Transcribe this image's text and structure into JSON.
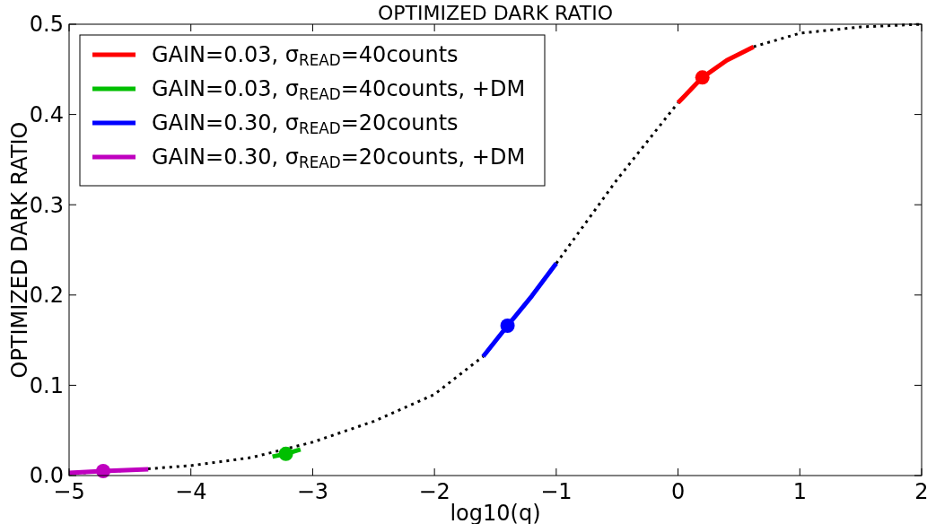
{
  "chart_data": {
    "type": "line",
    "title": "OPTIMIZED DARK RATIO",
    "xlabel": "log10(q)",
    "ylabel": "OPTIMIZED DARK RATIO",
    "xlim": [
      -5,
      2
    ],
    "xticks": [
      {
        "value": -5,
        "label": "−5"
      },
      {
        "value": -4,
        "label": "−4"
      },
      {
        "value": -3,
        "label": "−3"
      },
      {
        "value": -2,
        "label": "−2"
      },
      {
        "value": -1,
        "label": "−1"
      },
      0,
      1,
      2
    ],
    "ylim": [
      0,
      0.5
    ],
    "yticks": [
      {
        "value": 0,
        "label": "0.0"
      },
      0.1,
      0.2,
      0.3,
      0.4,
      0.5
    ],
    "grid": false,
    "legend": "top left",
    "series": [
      {
        "color": "#000000",
        "line_style": "dotted",
        "x": [
          -5,
          -4.5,
          -4,
          -3.5,
          -3,
          -2.5,
          -2,
          -1.6,
          -1.4,
          -1,
          -0.5,
          0,
          0.2,
          0.62,
          1,
          1.5,
          2
        ],
        "values": [
          0.002,
          0.006,
          0.011,
          0.02,
          0.037,
          0.06,
          0.09,
          0.132,
          null,
          0.235,
          0.328,
          0.413,
          null,
          0.475,
          0.49,
          0.497,
          0.5
        ]
      },
      {
        "name": "GAIN=0.03, σ$_{READ}$=40counts",
        "color": "#ff0000",
        "line_style": "solid",
        "x": [
          0,
          0.2,
          0.4,
          0.62
        ],
        "values": [
          0.413,
          0.441,
          0.46,
          0.475
        ]
      },
      {
        "name": "GAIN=0.03, σ$_{READ}$=40counts, +DM",
        "color": "#00bf00",
        "line_style": "solid",
        "x": [
          -3.33,
          -3.22,
          -3.1
        ],
        "values": [
          0.021,
          0.024,
          0.029
        ]
      },
      {
        "name": "GAIN=0.30, σ$_{READ}$=20counts",
        "color": "#0000ff",
        "line_style": "solid",
        "x": [
          -1.6,
          -1.4,
          -1.2,
          -1
        ],
        "values": [
          0.132,
          0.166,
          0.199,
          0.235
        ]
      },
      {
        "name": "GAIN=0.30, σ$_{READ}$=20counts, +DM",
        "color": "#bf00bf",
        "line_style": "solid",
        "x": [
          -5,
          -4.72,
          -4.35
        ],
        "values": [
          0.003,
          0.005,
          0.007
        ]
      },
      {
        "type": "scatter",
        "color": "#ff0000",
        "marker": "circle",
        "x": [
          0.2
        ],
        "values": [
          0.441
        ]
      },
      {
        "type": "scatter",
        "color": "#00bf00",
        "marker": "circle",
        "x": [
          -3.22
        ],
        "values": [
          0.024
        ]
      },
      {
        "type": "scatter",
        "color": "#0000ff",
        "marker": "circle",
        "x": [
          -1.4
        ],
        "values": [
          0.166
        ]
      },
      {
        "type": "scatter",
        "color": "#bf00bf",
        "marker": "circle",
        "x": [
          -4.72
        ],
        "values": [
          0.005
        ]
      }
    ]
  }
}
